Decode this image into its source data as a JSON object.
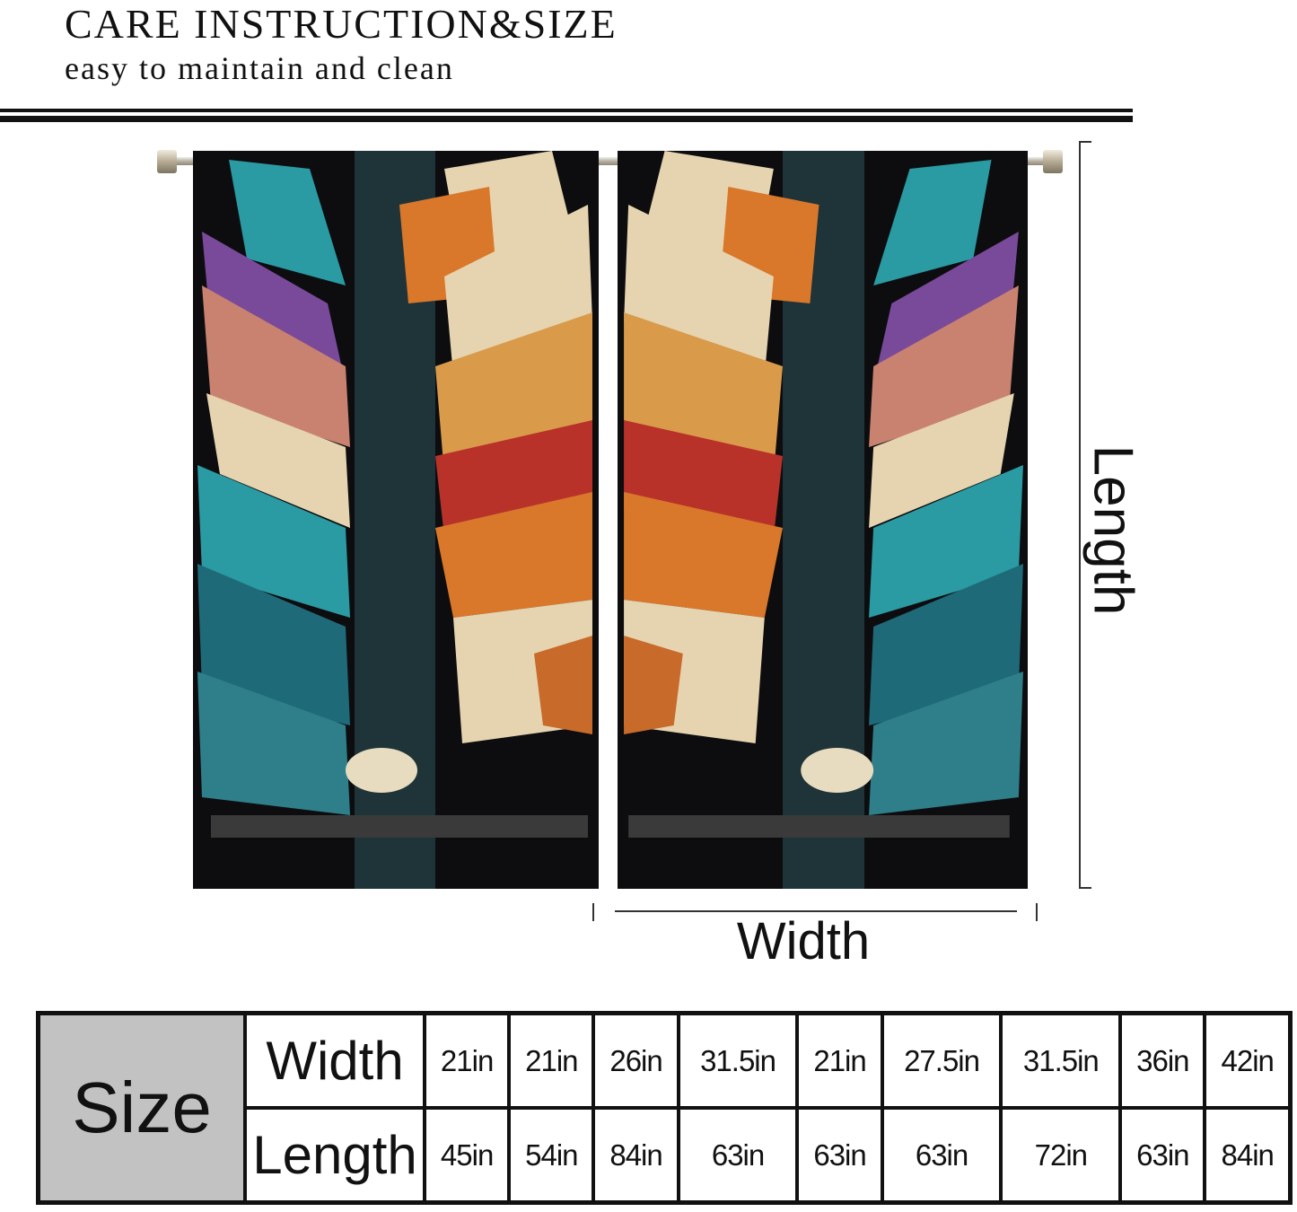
{
  "header": {
    "title": "CARE INSTRUCTION&SIZE",
    "subtitle": "easy to maintain and clean"
  },
  "diagram": {
    "length_label": "Length",
    "width_label": "Width"
  },
  "size_table": {
    "label": "Size",
    "row_headers": [
      "Width",
      "Length"
    ],
    "widths": [
      "21in",
      "21in",
      "26in",
      "31.5in",
      "21in",
      "27.5in",
      "31.5in",
      "36in",
      "42in"
    ],
    "lengths": [
      "45in",
      "54in",
      "84in",
      "63in",
      "63in",
      "63in",
      "72in",
      "63in",
      "84in"
    ]
  },
  "colors": {
    "teal": "#2a9aa3",
    "orange": "#d9772a",
    "cream": "#e6d4b0",
    "red": "#b8322a",
    "purple": "#7a4a9a",
    "table_label_bg": "#c2c2c2"
  }
}
